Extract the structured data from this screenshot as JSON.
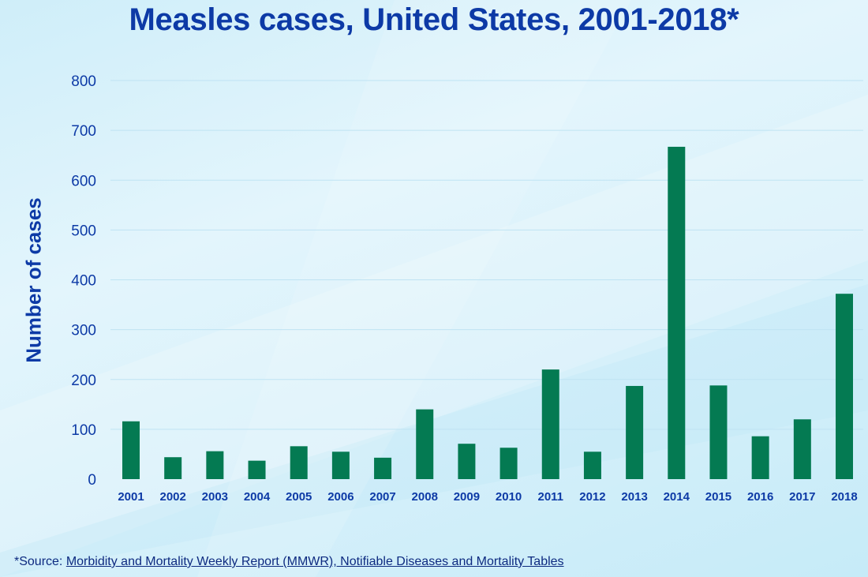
{
  "chart_data": {
    "type": "bar",
    "title": "Measles cases, United States, 2001-2018*",
    "xlabel": "",
    "ylabel": "Number of cases",
    "categories": [
      "2001",
      "2002",
      "2003",
      "2004",
      "2005",
      "2006",
      "2007",
      "2008",
      "2009",
      "2010",
      "2011",
      "2012",
      "2013",
      "2014",
      "2015",
      "2016",
      "2017",
      "2018"
    ],
    "values": [
      116,
      44,
      56,
      37,
      66,
      55,
      43,
      140,
      71,
      63,
      220,
      55,
      187,
      667,
      188,
      86,
      120,
      372
    ],
    "yticks": [
      "0",
      "100",
      "200",
      "300",
      "400",
      "500",
      "600",
      "700",
      "800"
    ],
    "ylim": [
      0,
      800
    ],
    "grid": true,
    "bar_color": "#047a52"
  },
  "footnote": {
    "prefix": "*Source: ",
    "link_text": "Morbidity and Mortality Weekly Report (MMWR), Notifiable Diseases and Mortality Tables"
  },
  "colors": {
    "title": "#0d3aa6",
    "axis_text": "#0d3aa6",
    "bar": "#047a52"
  }
}
